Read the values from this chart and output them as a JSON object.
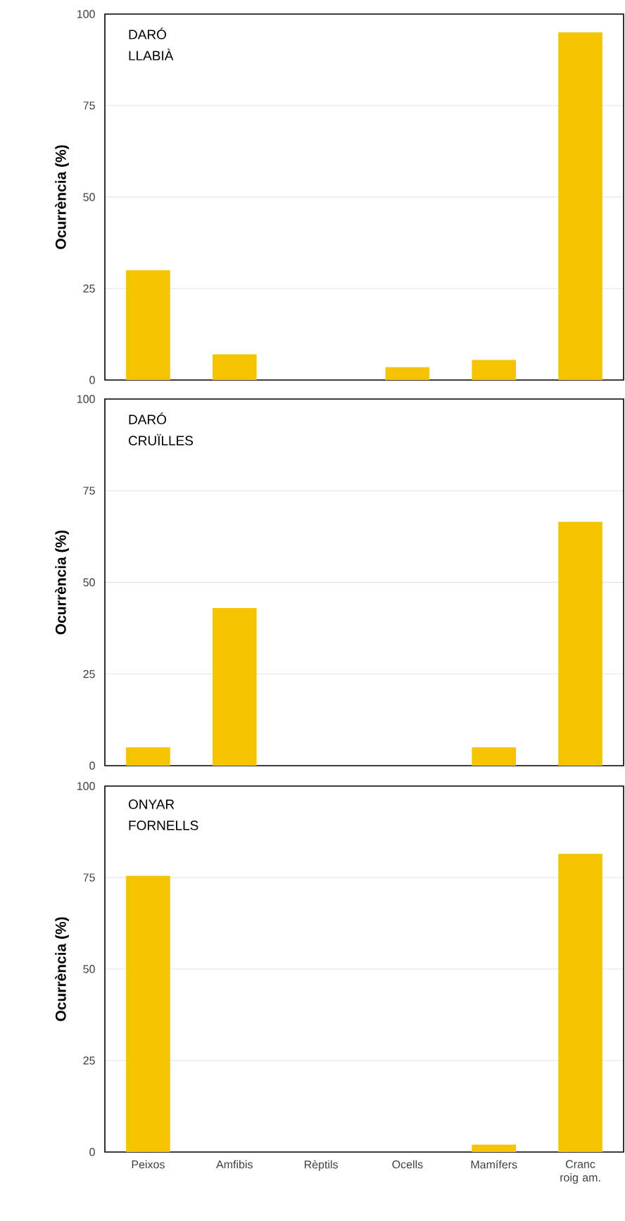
{
  "chart_data": [
    {
      "type": "bar",
      "title": "DARÓ LLABIÀ",
      "ylabel": "Ocurrència (%)",
      "categories": [
        null,
        null,
        null,
        null,
        null,
        null
      ],
      "values": [
        30,
        7,
        0,
        3.5,
        5.5,
        95
      ],
      "color": "#f5c400",
      "ylim": [
        0,
        100
      ],
      "yticks": [
        0,
        25,
        50,
        75,
        100
      ],
      "grid": "y"
    },
    {
      "type": "bar",
      "title": "DARÓ CRUÏLLES",
      "ylabel": "Ocurrència (%)",
      "categories": [
        null,
        null,
        null,
        null,
        null,
        null
      ],
      "values": [
        5,
        43,
        0,
        0,
        5,
        66.5
      ],
      "color": "#f5c400",
      "ylim": [
        0,
        100
      ],
      "yticks": [
        0,
        25,
        50,
        75,
        100
      ],
      "grid": "y"
    },
    {
      "type": "bar",
      "title": "ONYAR FORNELLS",
      "ylabel": "Ocurrència (%)",
      "categories": [
        "Peixos",
        "Amfibis",
        "Rèptils",
        "Ocells",
        "Mamífers",
        "Cranc roig am."
      ],
      "values": [
        75.5,
        0,
        0,
        0,
        2,
        81.5
      ],
      "color": "#f5c400",
      "ylim": [
        0,
        100
      ],
      "yticks": [
        0,
        25,
        50,
        75,
        100
      ],
      "grid": "y"
    }
  ]
}
